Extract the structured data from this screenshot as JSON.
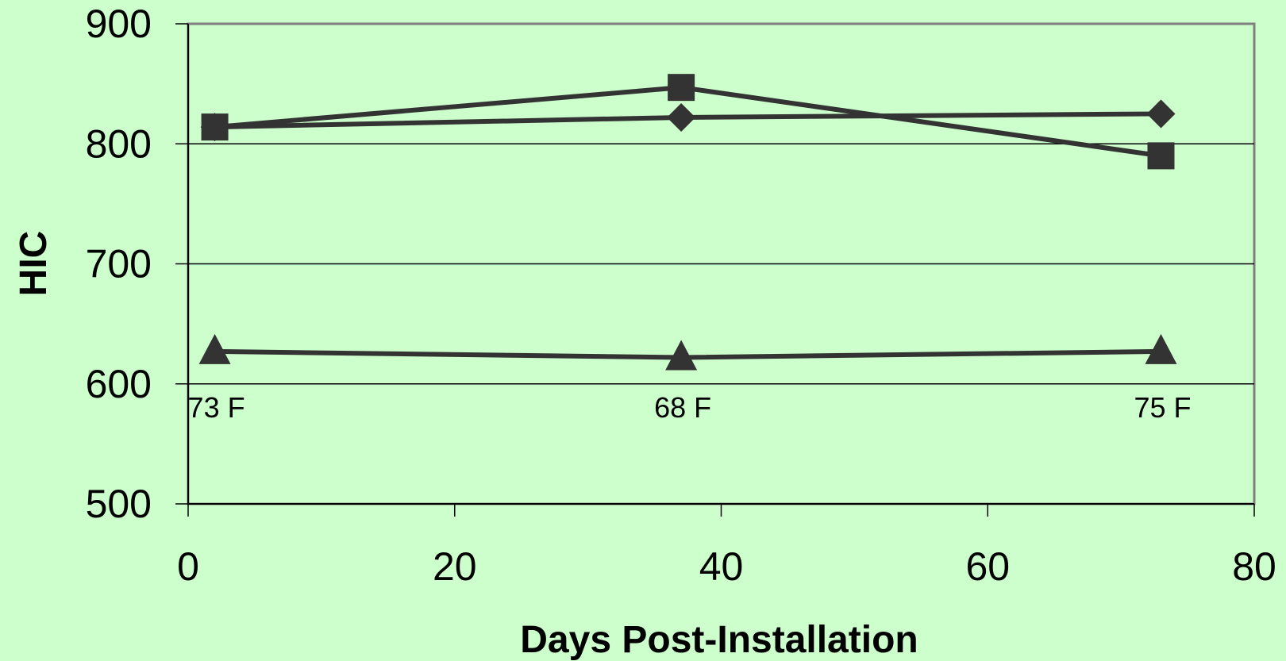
{
  "chart_data": {
    "type": "line",
    "xlabel": "Days Post-Installation",
    "ylabel": "HIC",
    "xlim": [
      0,
      80
    ],
    "ylim": [
      500,
      900
    ],
    "x_ticks": [
      0,
      20,
      40,
      60,
      80
    ],
    "y_ticks": [
      500,
      600,
      700,
      800,
      900
    ],
    "grid": "horizontal",
    "legend": "none",
    "series": [
      {
        "marker": "diamond",
        "color": "#333333",
        "x": [
          2,
          37,
          73
        ],
        "y": [
          814,
          822,
          825
        ]
      },
      {
        "marker": "square",
        "color": "#333333",
        "x": [
          2,
          37,
          73
        ],
        "y": [
          814,
          847,
          790
        ]
      },
      {
        "marker": "triangle",
        "color": "#333333",
        "x": [
          2,
          37,
          73
        ],
        "y": [
          627,
          622,
          627
        ]
      }
    ],
    "annotations": [
      {
        "text": "73 F",
        "x": 2
      },
      {
        "text": "68 F",
        "x": 37
      },
      {
        "text": "75 F",
        "x": 73
      }
    ]
  }
}
